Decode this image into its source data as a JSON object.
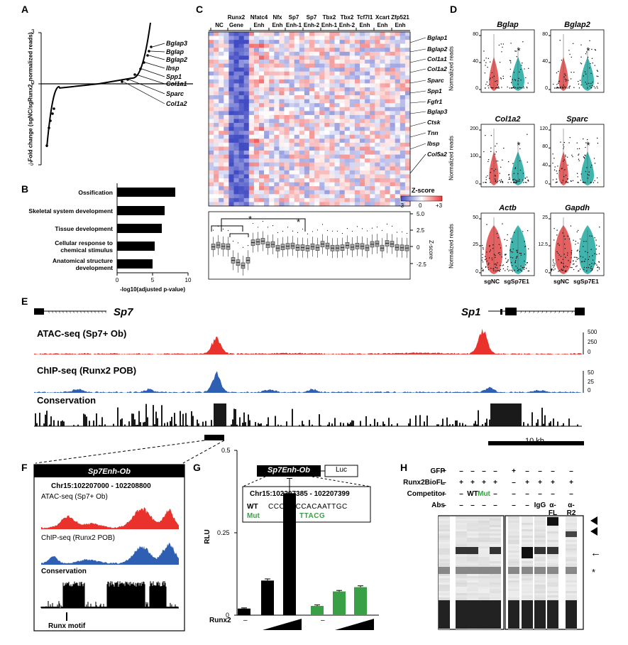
{
  "panels": {
    "A": "A",
    "B": "B",
    "C": "C",
    "D": "D",
    "E": "E",
    "F": "F",
    "G": "G",
    "H": "H"
  },
  "panelA": {
    "ylabel": "Fold change (sgNC/sgRunx2, normalized reads)",
    "yticks": [
      "3",
      "0",
      "-5"
    ],
    "genes": [
      "Bglap3",
      "Bglap",
      "Bglap2",
      "Ibsp",
      "Spp1",
      "Col1a1",
      "Sparc",
      "Col1a2"
    ]
  },
  "panelB": {
    "terms": [
      "Ossification",
      "Skeletal system development",
      "Tissue development",
      "Cellular response to chemical stimulus",
      "Anatomical structure development"
    ],
    "xticks": [
      "0",
      "5",
      "10"
    ],
    "xlabel": "-log10(adjusted p-value)"
  },
  "chart_data": [
    {
      "type": "bar",
      "categories": [
        "Ossification",
        "Skeletal system development",
        "Tissue development",
        "Cellular response to chemical stimulus",
        "Anatomical structure development"
      ],
      "values": [
        8.2,
        6.7,
        6.3,
        5.3,
        5.0
      ],
      "xlabel": "-log10(adjusted p-value)",
      "xlim": [
        0,
        10
      ]
    },
    {
      "type": "bar",
      "categories": [
        "",
        "",
        "",
        "",
        "",
        ""
      ],
      "values": [
        0.02,
        0.105,
        0.37,
        0.028,
        0.072,
        0.085
      ],
      "errors": [
        0.002,
        0.005,
        0.045,
        0.003,
        0.003,
        0.004
      ],
      "colors": [
        "#000000",
        "#000000",
        "#000000",
        "#3aa045",
        "#3aa045",
        "#3aa045"
      ],
      "ylabel": "RLU",
      "ylim": [
        0,
        0.5
      ],
      "yticks": [
        "0",
        "0.25",
        "0.5"
      ]
    }
  ],
  "panelC": {
    "columns": [
      "NC",
      "Runx2 Gene",
      "Nfatc4 Enh",
      "Nfx Enh",
      "Sp7 Enh-1",
      "Sp7 Enh-2",
      "Tbx2 Enh-1",
      "Tbx2 Enh-2",
      "Tcf7l1 Enh",
      "Xcart Enh",
      "Zfp521 Enh"
    ],
    "genes": [
      "Bglap1",
      "Bglap2",
      "Col1a1",
      "Col1a2",
      "Sparc",
      "Spp1",
      "Fgfr1",
      "Bglap3",
      "Ctsk",
      "Tnn",
      "Ibsp",
      "Col5a2"
    ],
    "zscore_title": "Z-score",
    "zscore_ticks": [
      "-3",
      "0",
      "+3"
    ],
    "box_ylabel": "Z-score",
    "box_yticks": [
      "5.0",
      "2.5",
      "0",
      "-2.5"
    ],
    "star": "*"
  },
  "panelD": {
    "genes": [
      "Bglap",
      "Bglap2",
      "Col1a2",
      "Sparc",
      "Actb",
      "Gapdh"
    ],
    "ylabel": "Normalized reads",
    "yticks": [
      [
        "0",
        "40",
        "80"
      ],
      [
        "0",
        "40",
        "80"
      ],
      [
        "0",
        "100",
        "200"
      ],
      [
        "0",
        "40",
        "80",
        "120"
      ],
      [
        "0",
        "25",
        "50"
      ],
      [
        "0",
        "12.5",
        "25"
      ]
    ],
    "xlabels": [
      "sgNC",
      "sgSp7E1"
    ],
    "star": "*"
  },
  "panelE": {
    "gene_left": "Sp7",
    "gene_right": "Sp1",
    "track1": "ATAC-seq (Sp7+ Ob)",
    "track1_ticks": [
      "500",
      "250",
      "0"
    ],
    "track2": "ChIP-seq (Runx2 POB)",
    "track2_ticks": [
      "50",
      "25",
      "0"
    ],
    "track3": "Conservation",
    "scale": "10 kb"
  },
  "panelF": {
    "title": "Sp7Enh-Ob",
    "coords": "Chr15:102207000 - 102208800",
    "track1": "ATAC-seq (Sp7+ Ob)",
    "track2": "ChIP-seq (Runx2 POB)",
    "track3": "Conservation",
    "motif": "Runx motif"
  },
  "panelG": {
    "construct": "Sp7Enh-Ob",
    "luc": "Luc",
    "coords": "Chr15:102207385 - 102207399",
    "wt_label": "WT",
    "wt_seq": "CCCGACCACAATTGC",
    "mut_label": "Mut",
    "mut_seq": "TTACG",
    "runx2": "Runx2",
    "dash": "–"
  },
  "panelH": {
    "rows": [
      "GFP",
      "Runx2BioFL",
      "Competitor",
      "Abs"
    ],
    "gfp": [
      "+",
      "–",
      "–",
      "–",
      "–",
      "+",
      "–",
      "–",
      "–",
      "–"
    ],
    "runx2": [
      "–",
      "+",
      "+",
      "+",
      "+",
      "–",
      "+",
      "+",
      "+",
      "+"
    ],
    "competitor": [
      "–",
      "–",
      "WT",
      "Mut",
      "–",
      "–",
      "–",
      "–",
      "–",
      "–"
    ],
    "abs": [
      "–",
      "–",
      "–",
      "–",
      "–",
      "–",
      "–",
      "IgG",
      "α-FL",
      "α-R2"
    ],
    "arrow": "←",
    "star": "*"
  }
}
